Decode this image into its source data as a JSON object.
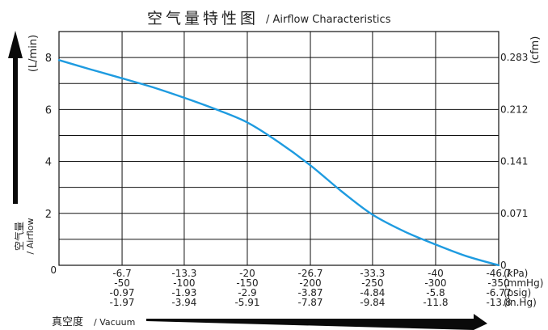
{
  "chart_data": {
    "type": "line",
    "title": "空气量特性图",
    "title_en": "/ Airflow Characteristics",
    "ylabel_units_left": "(L/min)",
    "ylabel_units_right": "(cfm)",
    "ylabel_cn": "空气量",
    "ylabel_en": "/ Airflow",
    "xlabel_cn": "真空度",
    "xlabel_en": "/ Vacuum",
    "xlim": [
      0,
      -46.7
    ],
    "ylim": [
      0,
      9
    ],
    "y_ticks": [
      0,
      2,
      4,
      6,
      8
    ],
    "y_right_ticks": [
      {
        "at": 0,
        "label": "0"
      },
      {
        "at": 2,
        "label": "0.071"
      },
      {
        "at": 4,
        "label": "0.141"
      },
      {
        "at": 6,
        "label": "0.212"
      },
      {
        "at": 8,
        "label": "0.283"
      }
    ],
    "x_units": [
      "(kPa)",
      "(mmHg)",
      "(psig)",
      "(in.Hg)"
    ],
    "x_ticks": [
      {
        "kpa": "-6.7",
        "mmhg": "-50",
        "psig": "-0.97",
        "inhg": "-1.97"
      },
      {
        "kpa": "-13.3",
        "mmhg": "-100",
        "psig": "-1.93",
        "inhg": "-3.94"
      },
      {
        "kpa": "-20",
        "mmhg": "-150",
        "psig": "-2.9",
        "inhg": "-5.91"
      },
      {
        "kpa": "-26.7",
        "mmhg": "-200",
        "psig": "-3.87",
        "inhg": "-7.87"
      },
      {
        "kpa": "-33.3",
        "mmhg": "-250",
        "psig": "-4.84",
        "inhg": "-9.84"
      },
      {
        "kpa": "-40",
        "mmhg": "-300",
        "psig": "-5.8",
        "inhg": "-11.8"
      },
      {
        "kpa": "-46.7",
        "mmhg": "-350",
        "psig": "-6.77",
        "inhg": "-13.8"
      }
    ],
    "grid": true,
    "series": [
      {
        "color": "#1e9be0",
        "x": [
          0,
          -3.3,
          -6.7,
          -10,
          -13.3,
          -16.7,
          -20,
          -23.3,
          -26.7,
          -30,
          -33.3,
          -36.7,
          -40,
          -43.3,
          -46.7
        ],
        "y": [
          7.9,
          7.55,
          7.2,
          6.85,
          6.45,
          6.0,
          5.5,
          4.75,
          3.85,
          2.85,
          1.95,
          1.3,
          0.8,
          0.35,
          0.0
        ]
      }
    ]
  }
}
